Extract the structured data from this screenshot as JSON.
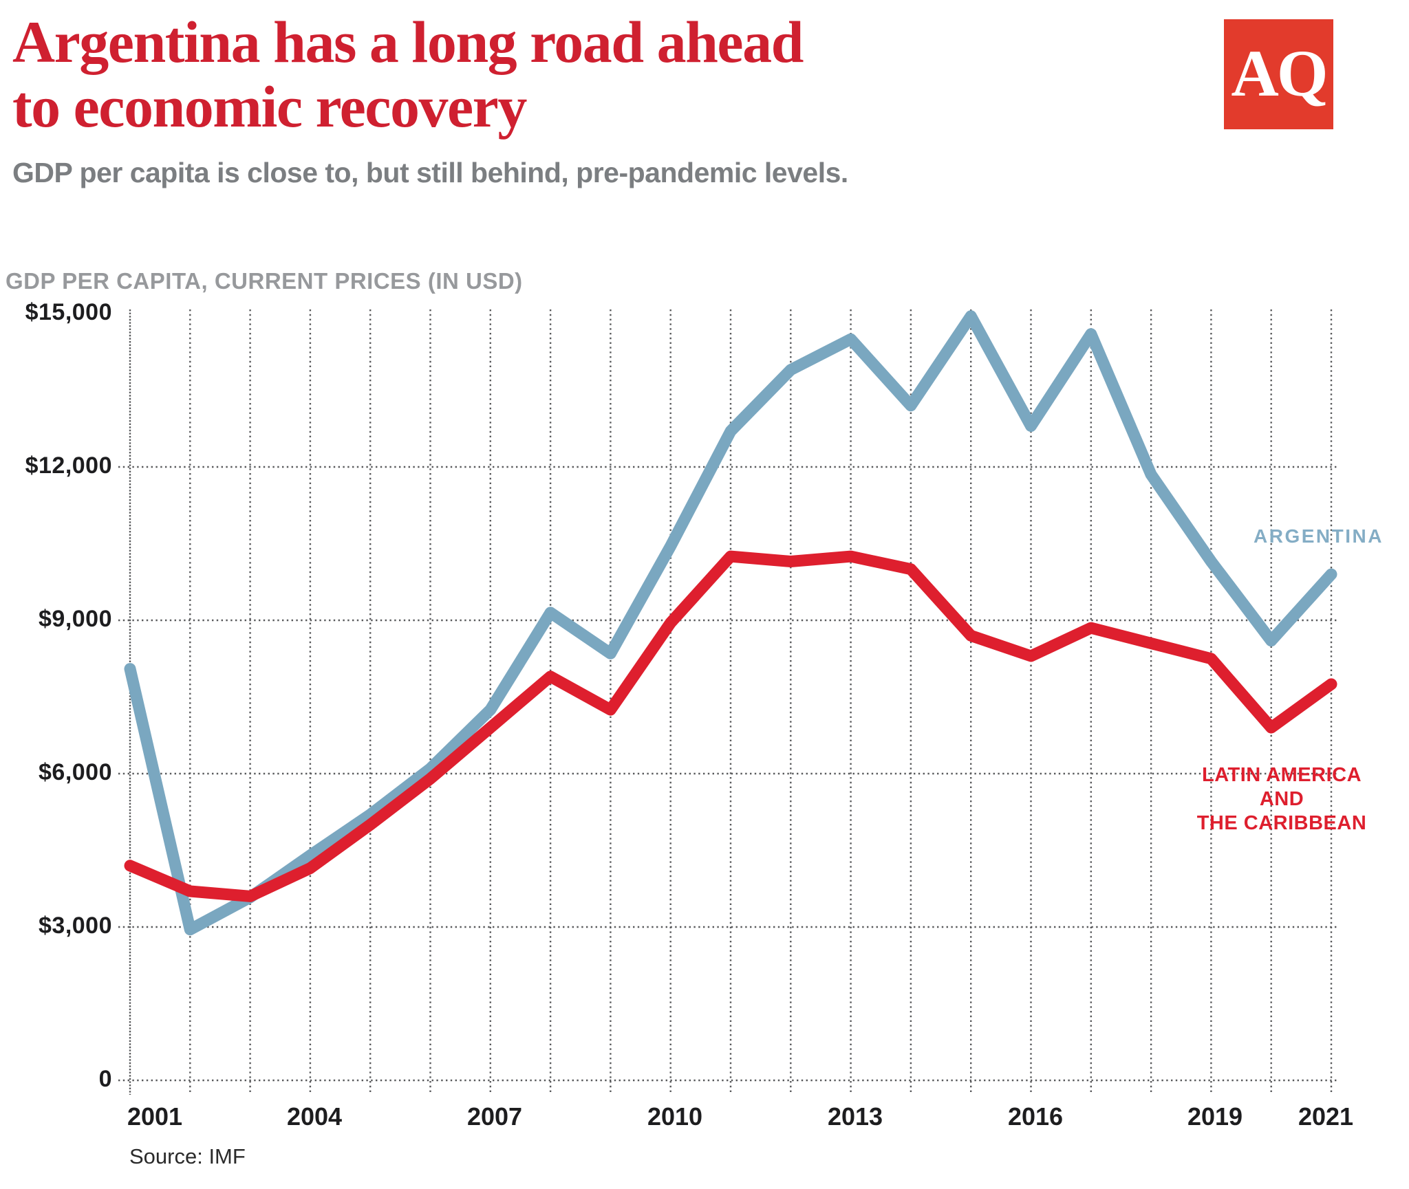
{
  "header": {
    "title_line1": "Argentina has a long road ahead",
    "title_line2": "to economic recovery",
    "subtitle": "GDP per capita is close to, but still behind, pre-pandemic levels.",
    "logo_text": "AQ"
  },
  "colors": {
    "title_red": "#cf2030",
    "logo_red": "#e23b2c",
    "subtitle_gray": "#7b7e81",
    "axis_title_gray": "#97999c",
    "tick_black": "#1d1d1f",
    "grid_gray": "#58595b",
    "argentina_blue": "#7aa7c0",
    "argentina_label_blue": "#84adc5",
    "lac_red": "#de1f2e"
  },
  "chart": {
    "axis_title": "GDP PER CAPITA, CURRENT PRICES (IN USD)",
    "y_tick_labels": [
      "$15,000",
      "$12,000",
      "$9,000",
      "$6,000",
      "$3,000",
      "0"
    ],
    "y_tick_values": [
      15000,
      12000,
      9000,
      6000,
      3000,
      0
    ],
    "x_tick_labels": [
      "2001",
      "2004",
      "2007",
      "2010",
      "2013",
      "2016",
      "2019",
      "2021"
    ],
    "x_tick_years": [
      2001,
      2004,
      2007,
      2010,
      2013,
      2016,
      2019,
      2021
    ],
    "argentina_label": "ARGENTINA",
    "lac_label_line1": "LATIN AMERICA AND",
    "lac_label_line2": "THE CARIBBEAN",
    "source": "Source: IMF"
  },
  "chart_data": {
    "type": "line",
    "title": "Argentina has a long road ahead to economic recovery",
    "subtitle": "GDP per capita is close to, but still behind, pre-pandemic levels.",
    "ylabel": "GDP PER CAPITA, CURRENT PRICES (IN USD)",
    "xlabel": "",
    "ylim": [
      0,
      15000
    ],
    "yticks": [
      0,
      3000,
      6000,
      9000,
      12000,
      15000
    ],
    "grid": "dotted vertical line per year and dotted horizontal lines at 0-12000; no line at 15000",
    "legend": "direct labels near line ends (ARGENTINA blue, LATIN AMERICA AND THE CARIBBEAN red)",
    "x": [
      2001,
      2002,
      2003,
      2004,
      2005,
      2006,
      2007,
      2008,
      2009,
      2010,
      2011,
      2012,
      2013,
      2014,
      2015,
      2016,
      2017,
      2018,
      2019,
      2020,
      2021
    ],
    "series": [
      {
        "name": "Argentina",
        "color_key": "argentina_blue",
        "values": [
          8050,
          2950,
          3580,
          4400,
          5200,
          6100,
          7250,
          9150,
          8350,
          10450,
          12700,
          13900,
          14500,
          13200,
          14950,
          12800,
          14600,
          11850,
          10150,
          8600,
          9900
        ]
      },
      {
        "name": "Latin America and the Caribbean",
        "color_key": "lac_red",
        "values": [
          4200,
          3700,
          3600,
          4150,
          5000,
          5900,
          6900,
          7900,
          7250,
          8950,
          10250,
          10150,
          10250,
          10000,
          8700,
          8300,
          8850,
          8550,
          8250,
          6900,
          7750
        ]
      }
    ],
    "source": "Source: IMF"
  }
}
